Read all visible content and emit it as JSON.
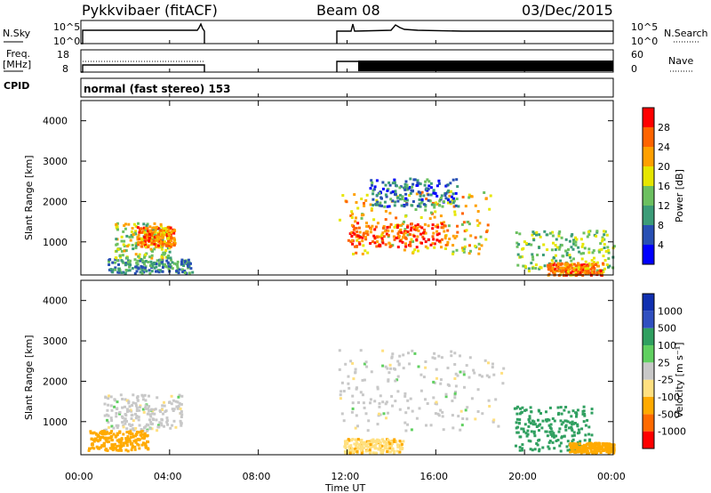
{
  "header": {
    "station": "Pykkvibaer (fitACF)",
    "beam": "Beam 08",
    "date": "03/Dec/2015"
  },
  "noise_panel": {
    "left_label": "N.Sky",
    "right_label": "N.Search",
    "left_ticks": [
      "10^5",
      "10^0"
    ],
    "right_ticks": [
      "10^5",
      "10^0"
    ],
    "right_style": "dotted"
  },
  "freq_panel": {
    "left_label_1": "Freq.",
    "left_label_2": "[MHz]",
    "right_label": "Nave",
    "left_ticks": [
      "18",
      "8"
    ],
    "right_ticks": [
      "60",
      "0"
    ],
    "right_style": "dotted"
  },
  "cpid": {
    "label": "CPID",
    "text": "normal (fast stereo) 153"
  },
  "colors": {
    "power": [
      "#0000ff",
      "#2850b4",
      "#3c9c78",
      "#6cc060",
      "#e6e600",
      "#ffa000",
      "#ff6400",
      "#ff0000"
    ],
    "velocity": [
      "#ff0000",
      "#ff6a00",
      "#ffaa00",
      "#ffe080",
      "#c8c8c8",
      "#60d060",
      "#30a060",
      "#3050c0",
      "#1030b0"
    ],
    "ground_scatter": "#c0c0c0"
  },
  "chart_data": [
    {
      "type": "heatmap",
      "name": "power-panel",
      "ylabel": "Slant Range [km]",
      "y_ticks": [
        "4000",
        "3000",
        "2000",
        "1000"
      ],
      "ylim": [
        180,
        4500
      ],
      "colorbar_label": "Power [dB]",
      "colorbar_ticks": [
        "28",
        "24",
        "20",
        "16",
        "12",
        "8",
        "4"
      ],
      "colorbar_range": [
        0,
        32
      ],
      "regions": [
        {
          "t": [
            1.2,
            5.0
          ],
          "range": [
            250,
            600
          ],
          "value": 10
        },
        {
          "t": [
            1.5,
            4.0
          ],
          "range": [
            600,
            1500
          ],
          "value": 16
        },
        {
          "t": [
            2.5,
            4.2
          ],
          "range": [
            900,
            1400
          ],
          "value": 24
        },
        {
          "t": [
            11.6,
            18.5
          ],
          "range": [
            700,
            2300
          ],
          "value": 20
        },
        {
          "t": [
            12.0,
            16.5
          ],
          "range": [
            900,
            1500
          ],
          "value": 26
        },
        {
          "t": [
            13.0,
            17.0
          ],
          "range": [
            1900,
            2600
          ],
          "value": 8
        },
        {
          "t": [
            19.5,
            24.0
          ],
          "range": [
            300,
            1300
          ],
          "value": 14
        },
        {
          "t": [
            21.0,
            23.5
          ],
          "range": [
            200,
            500
          ],
          "value": 24
        }
      ]
    },
    {
      "type": "heatmap",
      "name": "velocity-panel",
      "ylabel": "Slant Range [km]",
      "y_ticks": [
        "4000",
        "3000",
        "2000",
        "1000"
      ],
      "ylim": [
        180,
        4500
      ],
      "colorbar_label": "Velocity [m s⁻¹]",
      "colorbar_ticks": [
        "1000",
        "500",
        "100",
        "25",
        "-25",
        "-100",
        "-500",
        "-1000"
      ],
      "regions": [
        {
          "t": [
            1.0,
            4.5
          ],
          "range": [
            800,
            1700
          ],
          "value": 0
        },
        {
          "t": [
            0.3,
            3.0
          ],
          "range": [
            300,
            800
          ],
          "value": -150
        },
        {
          "t": [
            11.6,
            19.0
          ],
          "range": [
            800,
            2800
          ],
          "value": 0
        },
        {
          "t": [
            11.8,
            14.5
          ],
          "range": [
            250,
            600
          ],
          "value": -80
        },
        {
          "t": [
            19.5,
            23.0
          ],
          "range": [
            300,
            1400
          ],
          "value": 300
        },
        {
          "t": [
            22.0,
            24.0
          ],
          "range": [
            250,
            500
          ],
          "value": -150
        }
      ]
    }
  ],
  "x_axis": {
    "label": "Time UT",
    "ticks": [
      "00:00",
      "04:00",
      "08:00",
      "12:00",
      "16:00",
      "20:00",
      "00:00"
    ]
  }
}
